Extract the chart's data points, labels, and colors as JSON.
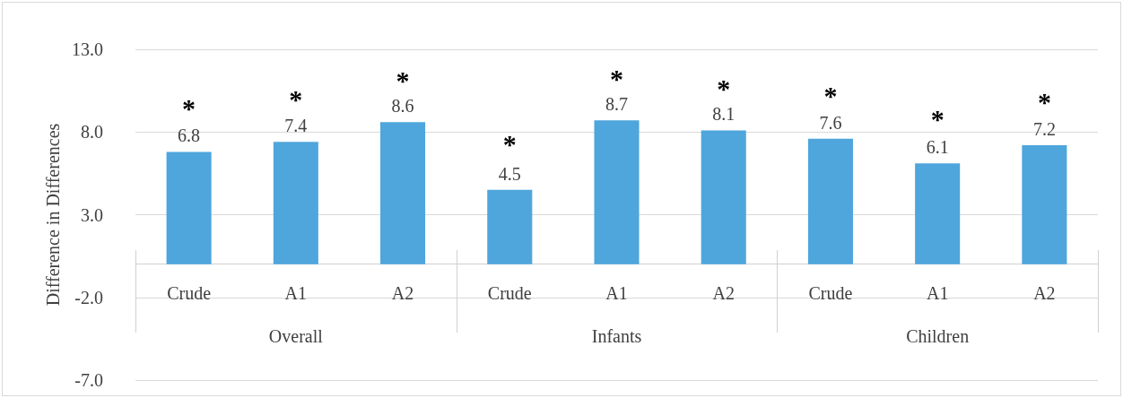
{
  "chart_data": {
    "type": "bar",
    "ylabel": "Difference in Differences",
    "categories": [
      "Crude",
      "A1",
      "A2",
      "Crude",
      "A1",
      "A2",
      "Crude",
      "A1",
      "A2"
    ],
    "values": [
      6.8,
      7.4,
      8.6,
      4.5,
      8.7,
      8.1,
      7.6,
      6.1,
      7.2
    ],
    "color": "#4ea6dc",
    "ylim": [
      -7,
      13
    ],
    "yticks": [
      {
        "value": -7,
        "label": "-7.0"
      },
      {
        "value": -2,
        "label": "-2.0"
      },
      {
        "value": 3,
        "label": "3.0"
      },
      {
        "value": 8,
        "label": "8.0"
      },
      {
        "value": 13,
        "label": "13.0"
      }
    ],
    "grid": "y",
    "data_labels": true,
    "annotations": [
      "*",
      "*",
      "*",
      "*",
      "*",
      "*",
      "*",
      "*",
      "*",
      "Overall",
      "Infants",
      "Children"
    ]
  }
}
